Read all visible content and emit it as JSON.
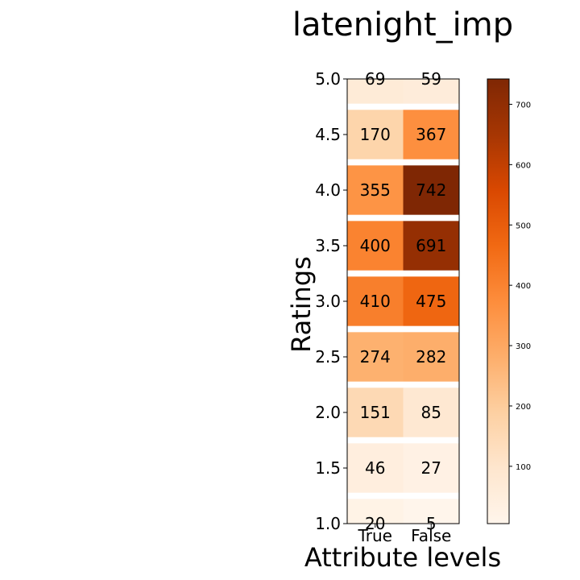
{
  "chart_data": {
    "type": "heatmap",
    "title": "latenight_imp",
    "xlabel": "Attribute levels",
    "ylabel": "Ratings",
    "x_categories": [
      "True",
      "False"
    ],
    "y_categories": [
      1.0,
      1.5,
      2.0,
      2.5,
      3.0,
      3.5,
      4.0,
      4.5,
      5.0
    ],
    "y_tick_labels": [
      "1.0",
      "1.5",
      "2.0",
      "2.5",
      "3.0",
      "3.5",
      "4.0",
      "4.5",
      "5.0"
    ],
    "values": [
      [
        20,
        5
      ],
      [
        46,
        27
      ],
      [
        151,
        85
      ],
      [
        274,
        282
      ],
      [
        410,
        475
      ],
      [
        400,
        691
      ],
      [
        355,
        742
      ],
      [
        170,
        367
      ],
      [
        69,
        59
      ]
    ],
    "colormap": "Oranges",
    "colors": {
      "low": "#fff5eb",
      "high": "#7f2704"
    },
    "colorbar": {
      "range": [
        5,
        742
      ],
      "ticks": [
        100,
        200,
        300,
        400,
        500,
        600,
        700
      ]
    },
    "grid": false,
    "legend": "none"
  }
}
